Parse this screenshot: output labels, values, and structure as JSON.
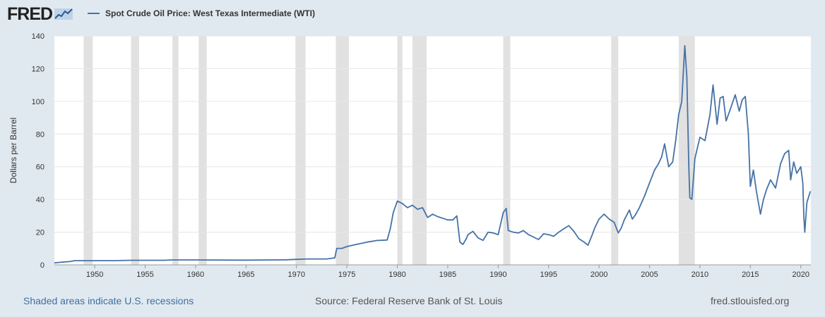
{
  "header": {
    "logo_text": "FRED",
    "logo_icon": "trend-line-icon"
  },
  "footer": {
    "recessions_note": "Shaded areas indicate U.S. recessions",
    "source": "Source: Federal Reserve Bank of St. Louis",
    "site": "fred.stlouisfed.org"
  },
  "colors": {
    "line": "#4572a7",
    "recession": "#e1e1e1",
    "background": "#e1e9f0",
    "plot": "#ffffff",
    "grid": "#e6e6e6"
  },
  "chart_data": {
    "type": "line",
    "title": "",
    "xlabel": "",
    "ylabel": "Dollars per Barrel",
    "series": [
      {
        "name": "Spot Crude Oil Price: West Texas Intermediate (WTI)",
        "x": [
          1946.0,
          1946.5,
          1947.0,
          1947.5,
          1948.0,
          1949.0,
          1952.0,
          1953.5,
          1957.0,
          1957.5,
          1960.0,
          1965.0,
          1969.0,
          1970.0,
          1971.0,
          1973.0,
          1973.8,
          1974.0,
          1974.5,
          1975.0,
          1976.0,
          1977.0,
          1978.0,
          1979.0,
          1979.3,
          1979.6,
          1980.0,
          1980.5,
          1981.0,
          1981.5,
          1982.0,
          1982.5,
          1983.0,
          1983.5,
          1984.0,
          1984.5,
          1985.0,
          1985.5,
          1985.9,
          1986.2,
          1986.5,
          1986.8,
          1987.0,
          1987.5,
          1988.0,
          1988.5,
          1989.0,
          1989.5,
          1990.0,
          1990.5,
          1990.8,
          1991.0,
          1991.5,
          1992.0,
          1992.5,
          1993.0,
          1993.5,
          1994.0,
          1994.5,
          1995.0,
          1995.5,
          1996.0,
          1996.5,
          1997.0,
          1997.5,
          1998.0,
          1998.5,
          1998.9,
          1999.3,
          1999.6,
          2000.0,
          2000.5,
          2001.0,
          2001.5,
          2001.9,
          2002.2,
          2002.5,
          2003.0,
          2003.3,
          2003.6,
          2004.0,
          2004.5,
          2005.0,
          2005.5,
          2005.9,
          2006.2,
          2006.5,
          2006.9,
          2007.3,
          2007.6,
          2007.9,
          2008.2,
          2008.5,
          2008.7,
          2008.9,
          2009.0,
          2009.2,
          2009.5,
          2010.0,
          2010.5,
          2011.0,
          2011.3,
          2011.7,
          2012.0,
          2012.3,
          2012.6,
          2013.0,
          2013.5,
          2013.9,
          2014.2,
          2014.5,
          2014.8,
          2015.0,
          2015.3,
          2015.6,
          2016.0,
          2016.3,
          2016.6,
          2017.0,
          2017.5,
          2018.0,
          2018.4,
          2018.8,
          2019.0,
          2019.3,
          2019.6,
          2020.0,
          2020.2,
          2020.3,
          2020.4,
          2020.6,
          2020.8,
          2020.95
        ],
        "y": [
          1.2,
          1.5,
          1.8,
          2.0,
          2.6,
          2.6,
          2.6,
          2.8,
          2.8,
          3.0,
          3.0,
          2.9,
          3.1,
          3.35,
          3.6,
          3.6,
          4.3,
          10.1,
          10.1,
          11.2,
          12.6,
          13.9,
          14.9,
          15.2,
          22.0,
          32.0,
          39.0,
          37.5,
          35.0,
          36.5,
          34.0,
          35.0,
          29.0,
          31.0,
          29.5,
          28.5,
          27.5,
          27.5,
          30.0,
          14.0,
          12.5,
          15.5,
          18.5,
          20.5,
          16.5,
          15.0,
          20.0,
          19.5,
          18.5,
          32.0,
          34.5,
          21.0,
          20.0,
          19.5,
          21.0,
          18.5,
          17.0,
          15.5,
          19.0,
          18.5,
          17.5,
          20.0,
          22.0,
          24.0,
          20.5,
          16.0,
          14.0,
          12.0,
          18.0,
          23.0,
          28.0,
          31.0,
          28.0,
          26.0,
          19.5,
          22.5,
          27.5,
          33.5,
          28.0,
          30.5,
          35.0,
          42.0,
          50.0,
          58.0,
          62.0,
          66.0,
          74.0,
          60.0,
          63.0,
          76.0,
          92.0,
          100.0,
          134.0,
          115.0,
          60.0,
          41.0,
          40.0,
          65.0,
          78.0,
          76.0,
          92.0,
          110.0,
          86.0,
          102.0,
          103.0,
          88.0,
          95.0,
          104.0,
          94.0,
          101.0,
          103.0,
          80.0,
          48.0,
          58.0,
          45.0,
          31.0,
          40.0,
          46.0,
          52.0,
          47.0,
          62.0,
          68.0,
          70.0,
          52.0,
          63.0,
          56.0,
          60.0,
          50.0,
          30.0,
          20.0,
          38.0,
          42.0,
          45.0
        ]
      }
    ],
    "xlim": [
      1946,
      2021
    ],
    "ylim": [
      0,
      140
    ],
    "xticks": [
      1950,
      1955,
      1960,
      1965,
      1970,
      1975,
      1980,
      1985,
      1990,
      1995,
      2000,
      2005,
      2010,
      2015,
      2020
    ],
    "yticks": [
      0,
      20,
      40,
      60,
      80,
      100,
      120,
      140
    ],
    "recessions": [
      [
        1948.9,
        1949.8
      ],
      [
        1953.6,
        1954.4
      ],
      [
        1957.7,
        1958.3
      ],
      [
        1960.3,
        1961.1
      ],
      [
        1969.9,
        1970.9
      ],
      [
        1973.9,
        1975.2
      ],
      [
        1980.0,
        1980.5
      ],
      [
        1981.5,
        1982.9
      ],
      [
        1990.5,
        1991.2
      ],
      [
        2001.2,
        2001.9
      ],
      [
        2007.9,
        2009.5
      ]
    ],
    "grid": true,
    "legend": "top-left"
  }
}
